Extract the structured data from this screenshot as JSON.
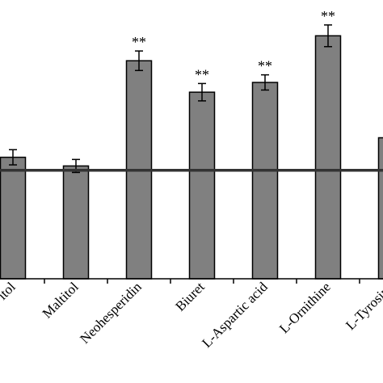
{
  "chart_data": {
    "type": "bar",
    "categories": [
      "itol",
      "Maltitol",
      "Neohesperidin",
      "Biuret",
      "L-Aspartic acid",
      "L-Ornithine",
      "L-Tyrosine"
    ],
    "series": [
      {
        "color": "#808080",
        "values": [
          1.12,
          1.04,
          2.01,
          1.72,
          1.81,
          2.24,
          1.3
        ],
        "errors": [
          0.07,
          0.06,
          0.09,
          0.08,
          0.07,
          0.1,
          null
        ]
      }
    ],
    "significance": [
      null,
      null,
      "**",
      "**",
      "**",
      "**",
      null
    ],
    "reference_line": 1,
    "ylim": [
      0,
      2.57
    ]
  }
}
